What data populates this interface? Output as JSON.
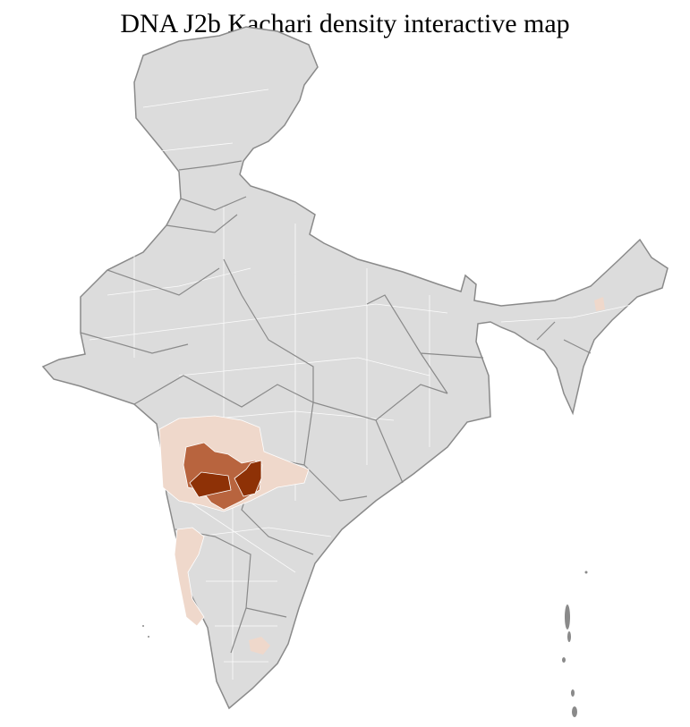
{
  "title": "DNA J2b Kachari density interactive map",
  "colors": {
    "base": "#dcdcdc",
    "district_border": "#ffffff",
    "state_border": "#8a8a8a",
    "low": "#efd8cb",
    "medium": "#b8643e",
    "high": "#8e3106"
  },
  "legend": []
}
